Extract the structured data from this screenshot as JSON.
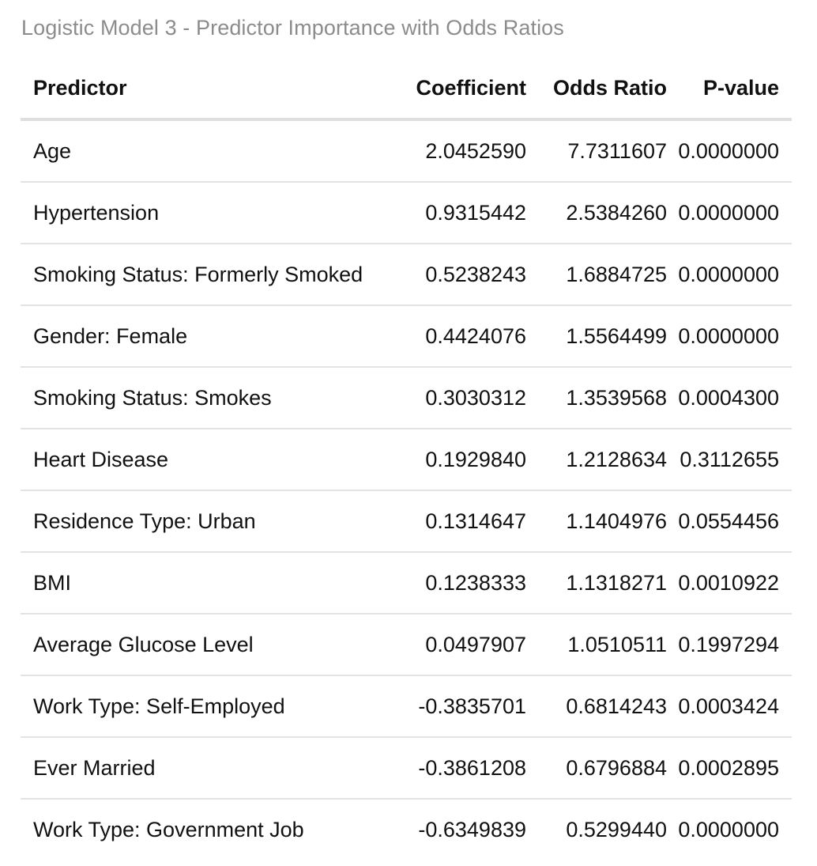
{
  "caption": "Logistic Model 3 - Predictor Importance with Odds Ratios",
  "table": {
    "headers": {
      "predictor": "Predictor",
      "coefficient": "Coefficient",
      "odds_ratio": "Odds Ratio",
      "p_value": "P-value"
    },
    "rows": [
      {
        "predictor": "Age",
        "coefficient": "2.0452590",
        "odds_ratio": "7.7311607",
        "p_value": "0.0000000"
      },
      {
        "predictor": "Hypertension",
        "coefficient": "0.9315442",
        "odds_ratio": "2.5384260",
        "p_value": "0.0000000"
      },
      {
        "predictor": "Smoking Status: Formerly Smoked",
        "coefficient": "0.5238243",
        "odds_ratio": "1.6884725",
        "p_value": "0.0000000"
      },
      {
        "predictor": "Gender: Female",
        "coefficient": "0.4424076",
        "odds_ratio": "1.5564499",
        "p_value": "0.0000000"
      },
      {
        "predictor": "Smoking Status: Smokes",
        "coefficient": "0.3030312",
        "odds_ratio": "1.3539568",
        "p_value": "0.0004300"
      },
      {
        "predictor": "Heart Disease",
        "coefficient": "0.1929840",
        "odds_ratio": "1.2128634",
        "p_value": "0.3112655"
      },
      {
        "predictor": "Residence Type: Urban",
        "coefficient": "0.1314647",
        "odds_ratio": "1.1404976",
        "p_value": "0.0554456"
      },
      {
        "predictor": "BMI",
        "coefficient": "0.1238333",
        "odds_ratio": "1.1318271",
        "p_value": "0.0010922"
      },
      {
        "predictor": "Average Glucose Level",
        "coefficient": "0.0497907",
        "odds_ratio": "1.0510511",
        "p_value": "0.1997294"
      },
      {
        "predictor": "Work Type: Self-Employed",
        "coefficient": "-0.3835701",
        "odds_ratio": "0.6814243",
        "p_value": "0.0003424"
      },
      {
        "predictor": "Ever Married",
        "coefficient": "-0.3861208",
        "odds_ratio": "0.6796884",
        "p_value": "0.0002895"
      },
      {
        "predictor": "Work Type: Government Job",
        "coefficient": "-0.6349839",
        "odds_ratio": "0.5299440",
        "p_value": "0.0000000"
      }
    ]
  }
}
